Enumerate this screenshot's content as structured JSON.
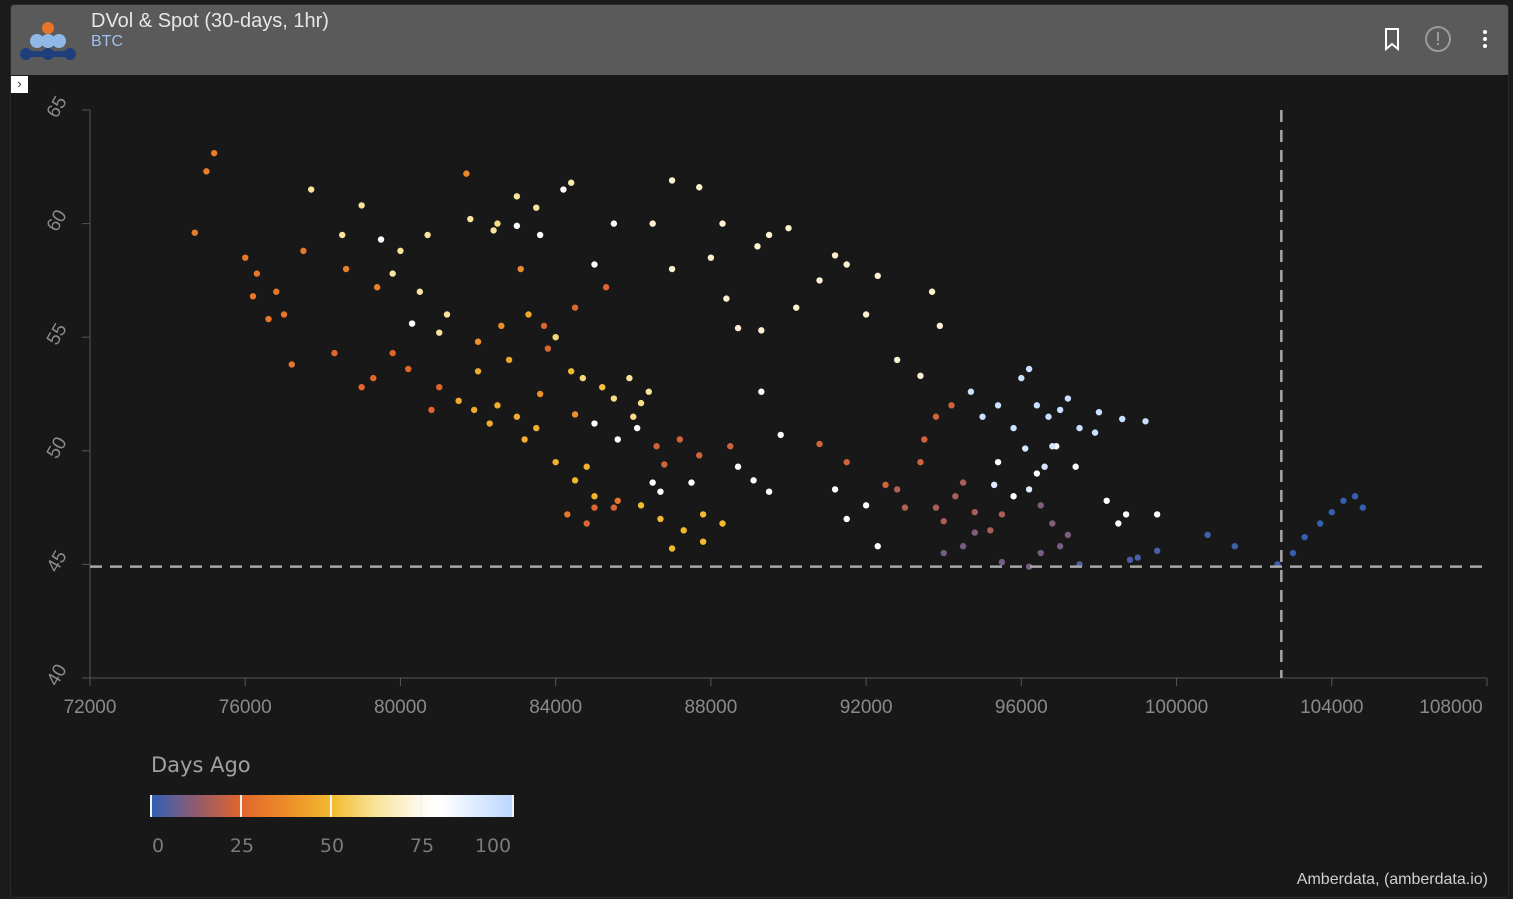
{
  "header": {
    "title": "DVol & Spot (30-days, 1hr)",
    "subtitle": "BTC",
    "icons": [
      "bookmark-icon",
      "info-icon",
      "more-vert-icon"
    ],
    "expand_icon": "chevron-right-icon"
  },
  "legend": {
    "title": "Days Ago",
    "ticks": [
      "0",
      "25",
      "50",
      "75",
      "100"
    ],
    "colors": [
      "#2e5fb8",
      "#9a5c66",
      "#e0662c",
      "#ee8e2a",
      "#f2bb2e",
      "#f8e49a",
      "#fffaf0",
      "#b8d6ff"
    ]
  },
  "credit": "Amberdata, (amberdata.io)",
  "chart_data": {
    "type": "scatter",
    "title": "",
    "xlabel": "",
    "ylabel": "",
    "xlim": [
      72000,
      108000
    ],
    "ylim": [
      40,
      65
    ],
    "x_ticks": [
      "72000",
      "76000",
      "80000",
      "84000",
      "88000",
      "92000",
      "96000",
      "100000",
      "104000",
      "108000"
    ],
    "y_ticks": [
      "40",
      "45",
      "50",
      "55",
      "60",
      "65"
    ],
    "grid": false,
    "color_by": "Days Ago",
    "reference_lines": {
      "x": 102700,
      "y": 44.9
    },
    "points_note_format": "[spot, dvol, days_ago]",
    "points": [
      [
        103000,
        45.5,
        1
      ],
      [
        103300,
        46.2,
        1
      ],
      [
        103700,
        46.8,
        1
      ],
      [
        104000,
        47.3,
        1
      ],
      [
        104300,
        47.8,
        1
      ],
      [
        104600,
        48,
        1
      ],
      [
        104800,
        47.5,
        1
      ],
      [
        102600,
        45,
        1
      ],
      [
        101500,
        45.8,
        2
      ],
      [
        100800,
        46.3,
        2
      ],
      [
        99500,
        45.6,
        3
      ],
      [
        99000,
        45.3,
        3
      ],
      [
        98800,
        45.2,
        3
      ],
      [
        97500,
        45,
        4
      ],
      [
        94000,
        45.5,
        8
      ],
      [
        94500,
        45.8,
        8
      ],
      [
        95500,
        45.1,
        8
      ],
      [
        96200,
        44.9,
        8
      ],
      [
        96500,
        45.5,
        8
      ],
      [
        97000,
        45.8,
        8
      ],
      [
        96800,
        46.8,
        9
      ],
      [
        96500,
        47.6,
        9
      ],
      [
        97200,
        46.3,
        9
      ],
      [
        94800,
        46.4,
        9
      ],
      [
        93800,
        47.5,
        15
      ],
      [
        94300,
        48,
        15
      ],
      [
        94800,
        47.3,
        15
      ],
      [
        95200,
        46.5,
        15
      ],
      [
        94000,
        46.9,
        15
      ],
      [
        93000,
        47.5,
        16
      ],
      [
        92800,
        48.3,
        16
      ],
      [
        94500,
        48.6,
        15
      ],
      [
        95500,
        47.2,
        15
      ],
      [
        93500,
        50.5,
        22
      ],
      [
        93800,
        51.5,
        22
      ],
      [
        94200,
        52,
        22
      ],
      [
        93400,
        49.5,
        22
      ],
      [
        92500,
        48.5,
        22
      ],
      [
        91500,
        49.5,
        22
      ],
      [
        90800,
        50.3,
        22
      ],
      [
        88500,
        50.2,
        22
      ],
      [
        87700,
        49.8,
        22
      ],
      [
        87200,
        50.5,
        22
      ],
      [
        86800,
        49.4,
        22
      ],
      [
        86600,
        50.2,
        22
      ],
      [
        85000,
        47.5,
        24
      ],
      [
        84800,
        46.8,
        24
      ],
      [
        85500,
        47.5,
        24
      ],
      [
        83700,
        55.5,
        24
      ],
      [
        84500,
        56.3,
        24
      ],
      [
        85300,
        57.2,
        24
      ],
      [
        83800,
        54.5,
        24
      ],
      [
        79800,
        54.3,
        25
      ],
      [
        79300,
        53.2,
        25
      ],
      [
        80200,
        53.6,
        25
      ],
      [
        81000,
        52.8,
        25
      ],
      [
        80800,
        51.8,
        25
      ],
      [
        78300,
        54.3,
        25
      ],
      [
        79000,
        52.8,
        25
      ],
      [
        75000,
        62.3,
        32
      ],
      [
        75200,
        63.1,
        32
      ],
      [
        74700,
        59.6,
        32
      ],
      [
        76300,
        57.8,
        30
      ],
      [
        76800,
        57,
        30
      ],
      [
        76000,
        58.5,
        30
      ],
      [
        77000,
        56,
        30
      ],
      [
        77500,
        58.8,
        30
      ],
      [
        76600,
        55.8,
        30
      ],
      [
        77200,
        53.8,
        30
      ],
      [
        76200,
        56.8,
        30
      ],
      [
        78600,
        58,
        33
      ],
      [
        79400,
        57.2,
        33
      ],
      [
        81700,
        62.2,
        35
      ],
      [
        83100,
        58,
        36
      ],
      [
        82600,
        55.5,
        37
      ],
      [
        82000,
        54.8,
        38
      ],
      [
        83600,
        52.5,
        38
      ],
      [
        84500,
        51.6,
        38
      ],
      [
        85600,
        47.8,
        30
      ],
      [
        84300,
        47.2,
        30
      ],
      [
        82000,
        53.5,
        45
      ],
      [
        82500,
        52,
        46
      ],
      [
        83000,
        51.5,
        46
      ],
      [
        83500,
        51,
        47
      ],
      [
        84000,
        49.5,
        47
      ],
      [
        84500,
        48.7,
        48
      ],
      [
        85000,
        48,
        48
      ],
      [
        84800,
        49.3,
        48
      ],
      [
        83200,
        50.5,
        46
      ],
      [
        82300,
        51.2,
        46
      ],
      [
        81900,
        51.8,
        45
      ],
      [
        82800,
        54,
        44
      ],
      [
        83300,
        56,
        44
      ],
      [
        84400,
        53.5,
        50
      ],
      [
        85200,
        52.8,
        52
      ],
      [
        86700,
        47,
        50
      ],
      [
        87300,
        46.5,
        50
      ],
      [
        87800,
        47.2,
        50
      ],
      [
        88300,
        46.8,
        50
      ],
      [
        87000,
        45.7,
        50
      ],
      [
        86200,
        47.6,
        50
      ],
      [
        87800,
        46,
        50
      ],
      [
        81500,
        52.2,
        45
      ],
      [
        78500,
        59.5,
        62
      ],
      [
        79000,
        60.8,
        62
      ],
      [
        80000,
        58.8,
        62
      ],
      [
        80500,
        57,
        62
      ],
      [
        81200,
        56,
        62
      ],
      [
        80700,
        59.5,
        62
      ],
      [
        81800,
        60.2,
        62
      ],
      [
        82400,
        59.7,
        62
      ],
      [
        83000,
        61.2,
        62
      ],
      [
        82500,
        60,
        60
      ],
      [
        83500,
        60.7,
        62
      ],
      [
        84400,
        61.8,
        65
      ],
      [
        85500,
        52.3,
        60
      ],
      [
        86200,
        52.1,
        60
      ],
      [
        85900,
        53.2,
        62
      ],
      [
        86000,
        51.5,
        60
      ],
      [
        84700,
        53.2,
        58
      ],
      [
        81000,
        55.2,
        62
      ],
      [
        79800,
        57.8,
        62
      ],
      [
        77700,
        61.5,
        62
      ],
      [
        84000,
        55,
        58
      ],
      [
        86400,
        52.6,
        62
      ],
      [
        87000,
        61.9,
        70
      ],
      [
        87700,
        61.6,
        70
      ],
      [
        88300,
        60,
        70
      ],
      [
        89500,
        59.5,
        70
      ],
      [
        90000,
        59.8,
        70
      ],
      [
        91200,
        58.6,
        70
      ],
      [
        92300,
        57.7,
        70
      ],
      [
        93700,
        57,
        70
      ],
      [
        93900,
        55.5,
        70
      ],
      [
        92000,
        56,
        70
      ],
      [
        88400,
        56.7,
        70
      ],
      [
        89300,
        55.3,
        70
      ],
      [
        90200,
        56.3,
        70
      ],
      [
        92800,
        54,
        70
      ],
      [
        93400,
        53.3,
        70
      ],
      [
        86500,
        60,
        70
      ],
      [
        87000,
        58,
        70
      ],
      [
        88000,
        58.5,
        70
      ],
      [
        89200,
        59,
        70
      ],
      [
        91500,
        58.2,
        70
      ],
      [
        90800,
        57.5,
        70
      ],
      [
        88700,
        55.4,
        70
      ],
      [
        83000,
        59.9,
        78
      ],
      [
        83600,
        59.5,
        78
      ],
      [
        84200,
        61.5,
        78
      ],
      [
        85500,
        60,
        78
      ],
      [
        85000,
        58.2,
        78
      ],
      [
        85600,
        50.5,
        78
      ],
      [
        85000,
        51.2,
        78
      ],
      [
        86100,
        51,
        78
      ],
      [
        86700,
        48.2,
        78
      ],
      [
        87500,
        48.6,
        78
      ],
      [
        88700,
        49.3,
        78
      ],
      [
        89100,
        48.7,
        78
      ],
      [
        89500,
        48.2,
        78
      ],
      [
        91200,
        48.3,
        78
      ],
      [
        91500,
        47,
        78
      ],
      [
        92000,
        47.6,
        78
      ],
      [
        92300,
        45.8,
        78
      ],
      [
        89800,
        50.7,
        78
      ],
      [
        89300,
        52.6,
        78
      ],
      [
        95400,
        49.5,
        80
      ],
      [
        95800,
        48,
        80
      ],
      [
        96400,
        49,
        80
      ],
      [
        97400,
        49.3,
        80
      ],
      [
        98200,
        47.8,
        80
      ],
      [
        98500,
        46.8,
        80
      ],
      [
        98700,
        47.2,
        80
      ],
      [
        99500,
        47.2,
        80
      ],
      [
        96900,
        50.2,
        82
      ],
      [
        86500,
        48.6,
        78
      ],
      [
        80300,
        55.6,
        78
      ],
      [
        79500,
        59.3,
        78
      ],
      [
        95000,
        51.5,
        95
      ],
      [
        95400,
        52,
        95
      ],
      [
        95800,
        51,
        95
      ],
      [
        96000,
        53.2,
        95
      ],
      [
        96200,
        53.6,
        95
      ],
      [
        96400,
        52,
        95
      ],
      [
        96700,
        51.5,
        95
      ],
      [
        97000,
        51.8,
        95
      ],
      [
        97500,
        51,
        95
      ],
      [
        97900,
        50.8,
        95
      ],
      [
        98000,
        51.7,
        95
      ],
      [
        96100,
        50.1,
        92
      ],
      [
        96600,
        49.3,
        92
      ],
      [
        96200,
        48.3,
        90
      ],
      [
        95300,
        48.5,
        90
      ],
      [
        97200,
        52.3,
        95
      ],
      [
        98600,
        51.4,
        95
      ],
      [
        99200,
        51.3,
        95
      ],
      [
        94700,
        52.6,
        95
      ],
      [
        96800,
        50.2,
        92
      ]
    ]
  }
}
